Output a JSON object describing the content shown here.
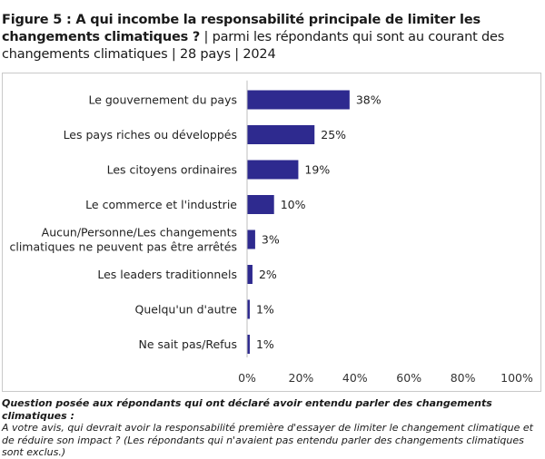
{
  "title": {
    "bold": "Figure 5 : A qui incombe la responsabilité principale de limiter les changements climatiques ?",
    "normal": " | parmi les répondants qui sont au courant des changements climatiques | 28 pays | 2024"
  },
  "note": {
    "bold": "Question posée aux répondants qui ont déclaré avoir entendu parler des changements climatiques :",
    "normal": "A votre avis, qui devrait avoir la responsabilité première d'essayer de limiter le changement climatique et de réduire son impact ? (Les répondants qui n'avaient pas entendu parler des changements climatiques sont exclus.)"
  },
  "chart_data": {
    "type": "bar",
    "orientation": "horizontal",
    "categories": [
      [
        "Le gouvernement du pays"
      ],
      [
        "Les pays riches ou développés"
      ],
      [
        "Les citoyens ordinaires"
      ],
      [
        "Le commerce et l'industrie"
      ],
      [
        "Aucun/Personne/Les changements",
        "climatiques ne peuvent pas être arrêtés"
      ],
      [
        "Les leaders traditionnels"
      ],
      [
        "Quelqu'un d'autre"
      ],
      [
        "Ne sait pas/Refus"
      ]
    ],
    "values": [
      38,
      25,
      19,
      10,
      3,
      2,
      1,
      1
    ],
    "value_labels": [
      "38%",
      "25%",
      "19%",
      "10%",
      "3%",
      "2%",
      "1%",
      "1%"
    ],
    "xlim": [
      0,
      100
    ],
    "xticks": [
      0,
      20,
      40,
      60,
      80,
      100
    ],
    "xtick_labels": [
      "0%",
      "20%",
      "40%",
      "60%",
      "80%",
      "100%"
    ],
    "grid": false,
    "bar_color": "#2e2a8f"
  }
}
